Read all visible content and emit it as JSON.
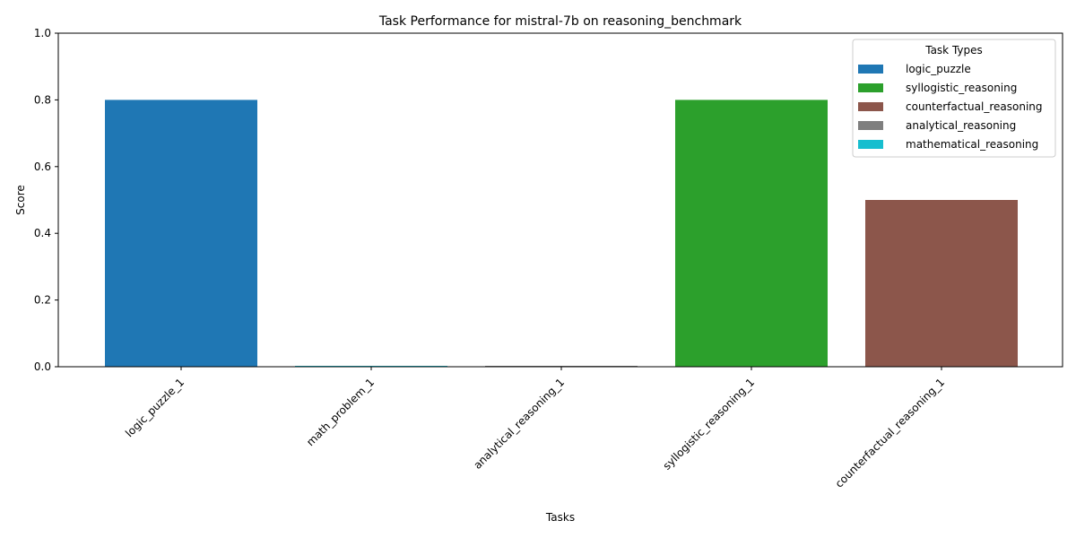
{
  "chart_data": {
    "type": "bar",
    "title": "Task Performance for mistral-7b on reasoning_benchmark",
    "xlabel": "Tasks",
    "ylabel": "Score",
    "ylim": [
      0,
      1.0
    ],
    "yticks": [
      "0.0",
      "0.2",
      "0.4",
      "0.6",
      "0.8",
      "1.0"
    ],
    "categories": [
      "logic_puzzle_1",
      "math_problem_1",
      "analytical_reasoning_1",
      "syllogistic_reasoning_1",
      "counterfactual_reasoning_1"
    ],
    "values": [
      0.8,
      0.0,
      0.0,
      0.8,
      0.5
    ],
    "bar_types": [
      "logic_puzzle",
      "mathematical_reasoning",
      "analytical_reasoning",
      "syllogistic_reasoning",
      "counterfactual_reasoning"
    ],
    "grid": false,
    "legend": {
      "title": "Task Types",
      "placement": "top-right",
      "entries": [
        {
          "label": "logic_puzzle",
          "color": "#1f77b4"
        },
        {
          "label": "syllogistic_reasoning",
          "color": "#2ca02c"
        },
        {
          "label": "counterfactual_reasoning",
          "color": "#8c564b"
        },
        {
          "label": "analytical_reasoning",
          "color": "#7f7f7f"
        },
        {
          "label": "mathematical_reasoning",
          "color": "#17becf"
        }
      ]
    }
  }
}
